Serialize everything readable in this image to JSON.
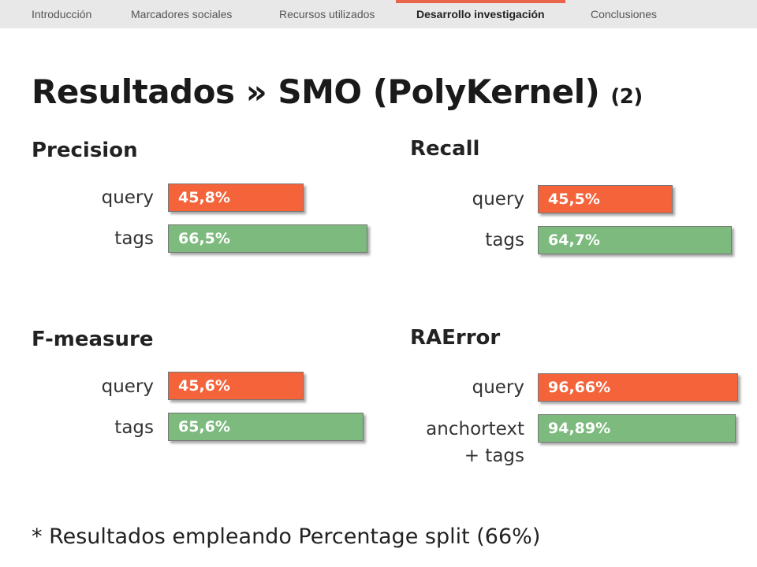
{
  "nav": {
    "items": [
      {
        "label": "Introducción",
        "active": false
      },
      {
        "label": "Marcadores sociales",
        "active": false
      },
      {
        "label": "Recursos utilizados",
        "active": false
      },
      {
        "label": "Desarrollo investigación",
        "active": true
      },
      {
        "label": "Conclusiones",
        "active": false
      }
    ]
  },
  "slide": {
    "title": "Resultados » SMO (PolyKernel)",
    "title_suffix": "(2)",
    "footnote": "* Resultados empleando Percentage split (66%)"
  },
  "panels": {
    "precision": {
      "title": "Precision",
      "rows": [
        {
          "label": "query",
          "value": "45,8%",
          "percent": 45.8,
          "color": "#f4633a"
        },
        {
          "label": "tags",
          "value": "66,5%",
          "percent": 66.5,
          "color": "#7dba7e"
        }
      ]
    },
    "recall": {
      "title": "Recall",
      "rows": [
        {
          "label": "query",
          "value": "45,5%",
          "percent": 45.5,
          "color": "#f4633a"
        },
        {
          "label": "tags",
          "value": "64,7%",
          "percent": 64.7,
          "color": "#7dba7e"
        }
      ]
    },
    "fmeasure": {
      "title": "F-measure",
      "rows": [
        {
          "label": "query",
          "value": "45,6%",
          "percent": 45.6,
          "color": "#f4633a"
        },
        {
          "label": "tags",
          "value": "65,6%",
          "percent": 65.6,
          "color": "#7dba7e"
        }
      ]
    },
    "raerror": {
      "title": "RAError",
      "rows": [
        {
          "label": "query",
          "value": "96,66%",
          "percent": 96.66,
          "color": "#f4633a"
        },
        {
          "label": "anchortext + tags",
          "label_line1": "anchortext",
          "label_line2": "+ tags",
          "value": "94,89%",
          "percent": 94.89,
          "color": "#7dba7e"
        }
      ]
    }
  }
}
